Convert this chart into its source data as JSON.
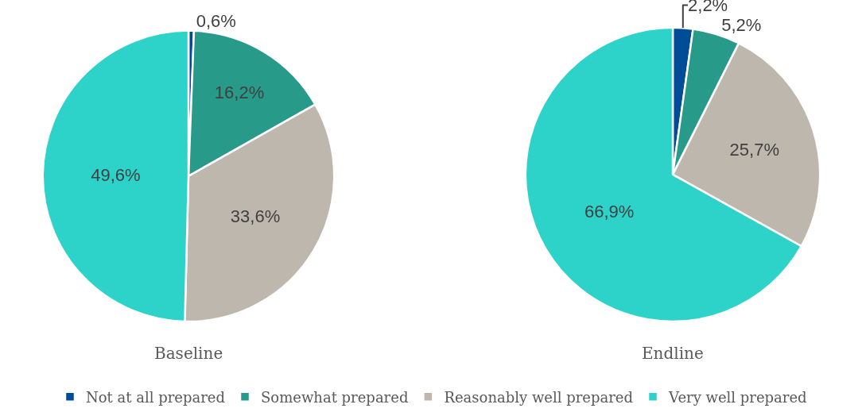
{
  "chart_data": {
    "type": "pie",
    "categories": [
      "Not at all prepared",
      "Somewhat prepared",
      "Reasonably well prepared",
      "Very well prepared"
    ],
    "colors": [
      "#004c97",
      "#279a8a",
      "#bdb7ad",
      "#2dd3c9"
    ],
    "series": [
      {
        "name": "Baseline",
        "values": [
          0.6,
          16.2,
          33.6,
          49.6
        ],
        "value_labels": [
          "0,6%",
          "16,2%",
          "33,6%",
          "49,6%"
        ]
      },
      {
        "name": "Endline",
        "values": [
          2.2,
          5.2,
          25.7,
          66.9
        ],
        "value_labels": [
          "2,2%",
          "5,2%",
          "25,7%",
          "66,9%"
        ]
      }
    ],
    "legend": "bottom"
  }
}
